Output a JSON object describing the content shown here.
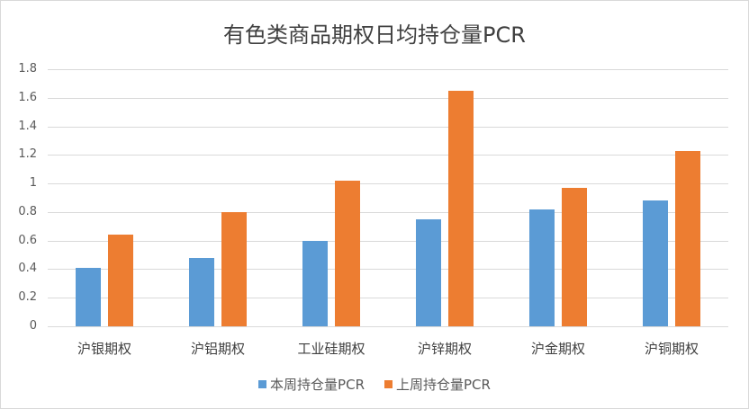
{
  "chart_data": {
    "type": "bar",
    "title": "有色类商品期权日均持仓量PCR",
    "categories": [
      "沪银期权",
      "沪铝期权",
      "工业硅期权",
      "沪锌期权",
      "沪金期权",
      "沪铜期权"
    ],
    "series": [
      {
        "name": "本周持仓量PCR",
        "color": "#5b9bd5",
        "values": [
          0.41,
          0.48,
          0.6,
          0.75,
          0.82,
          0.88
        ]
      },
      {
        "name": "上周持仓量PCR",
        "color": "#ed7d31",
        "values": [
          0.64,
          0.8,
          1.02,
          1.65,
          0.97,
          1.23
        ]
      }
    ],
    "xlabel": "",
    "ylabel": "",
    "ylim": [
      0,
      1.8
    ],
    "yticks": [
      "0",
      "0.2",
      "0.4",
      "0.6",
      "0.8",
      "1",
      "1.2",
      "1.4",
      "1.6",
      "1.8"
    ],
    "grid": true,
    "legend_position": "bottom"
  }
}
